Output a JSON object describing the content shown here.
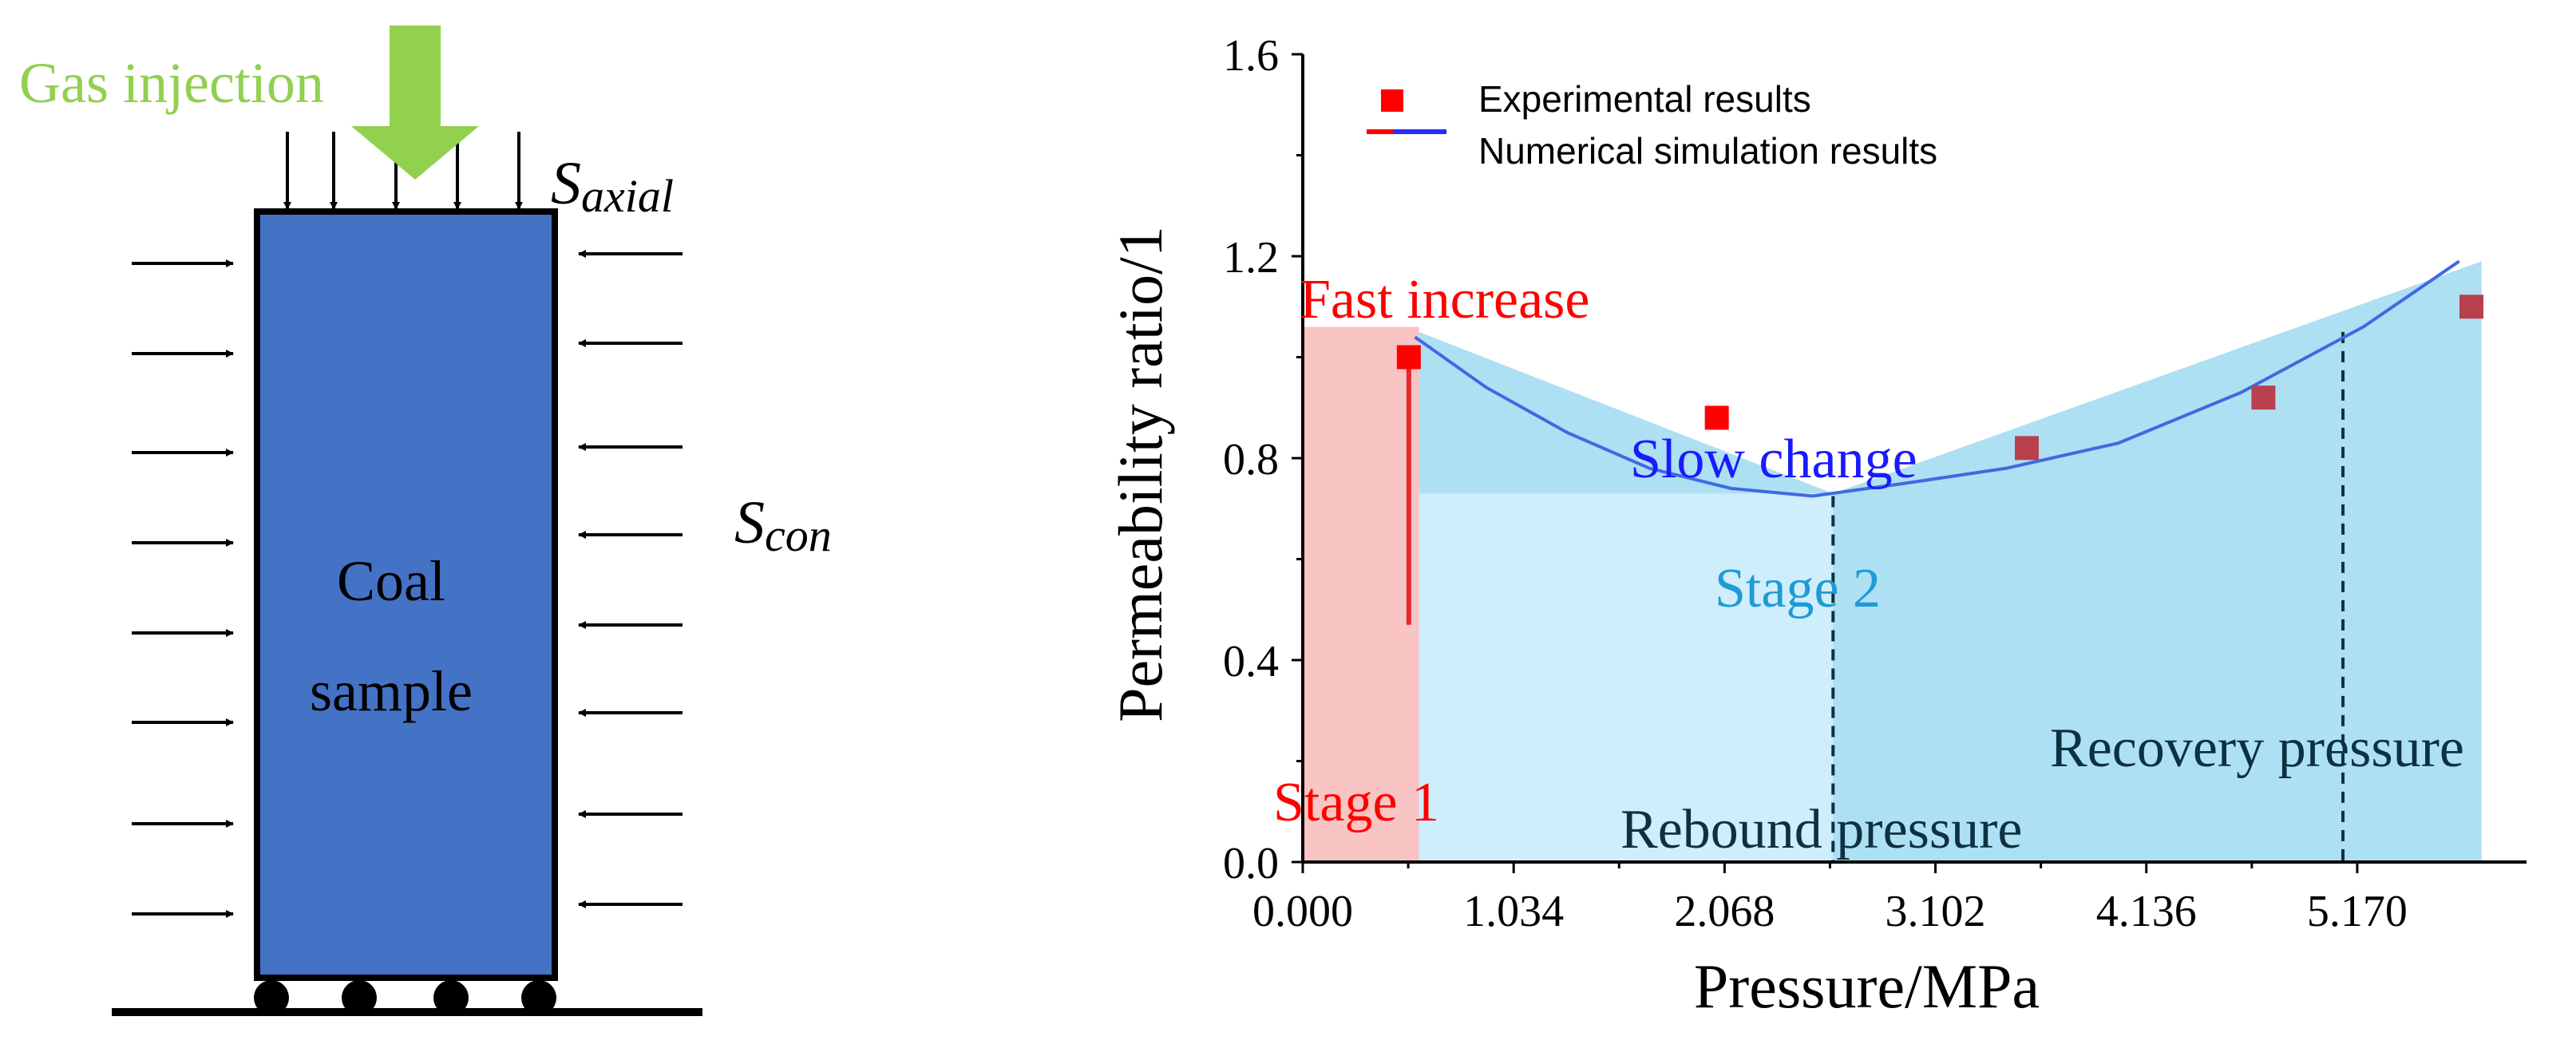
{
  "left_panel": {
    "gas_label": "Gas injection",
    "sample_line1": "Coal",
    "sample_line2": "sample",
    "axial_s": "S",
    "axial_sub": "axial",
    "con_s": "S",
    "con_sub": "con",
    "colors": {
      "sample": "#4472c4",
      "gas_arrow": "#92d050",
      "gas_text": "#92d050"
    }
  },
  "chart_data": {
    "type": "scatter",
    "ylabel": "Permeability ratio/1",
    "xlabel": "Pressure/MPa",
    "xlim": [
      0.0,
      6.0
    ],
    "ylim": [
      0.0,
      1.6
    ],
    "x_ticks": [
      0.0,
      1.034,
      2.068,
      3.102,
      4.136,
      5.17
    ],
    "x_tick_labels": [
      "0.000",
      "1.034",
      "2.068",
      "3.102",
      "4.136",
      "5.170"
    ],
    "y_ticks": [
      0.0,
      0.4,
      0.8,
      1.2,
      1.6
    ],
    "y_tick_labels": [
      "0.0",
      "0.4",
      "0.8",
      "1.2",
      "1.6"
    ],
    "legend": {
      "experimental": "Experimental results",
      "numerical": "Numerical simulation results",
      "position": "top-left"
    },
    "experimental": {
      "x": [
        0.52,
        2.03,
        3.55,
        4.71,
        5.73
      ],
      "y": [
        1.0,
        0.88,
        0.82,
        0.92,
        1.1
      ]
    },
    "numerical": {
      "x": [
        0.55,
        0.9,
        1.3,
        1.7,
        2.1,
        2.5,
        2.95,
        3.45,
        4.0,
        4.6,
        5.2,
        5.67
      ],
      "y": [
        1.04,
        0.94,
        0.85,
        0.78,
        0.74,
        0.725,
        0.75,
        0.78,
        0.83,
        0.93,
        1.06,
        1.19
      ]
    },
    "stage1_vertical_line": {
      "x": 0.52,
      "y_from": 0.47,
      "y_to": 1.0
    },
    "regions": {
      "stage1": {
        "x": [
          0.0,
          0.57
        ],
        "y_top": 1.06
      },
      "stage2_band": {
        "x": [
          0.57,
          5.78
        ],
        "y_top_left": 1.05,
        "y_mid": 0.73,
        "x_mid": 2.6,
        "y_top_right": 1.19
      }
    },
    "dashed_lines": [
      {
        "x": 2.6,
        "y_to": 0.725
      },
      {
        "x": 5.1,
        "y_to": 1.05
      }
    ],
    "annotations": {
      "fast_increase": "Fast increase",
      "slow_change": "Slow change",
      "stage1": "Stage 1",
      "stage2": "Stage 2",
      "rebound": "Rebound pressure",
      "recovery": "Recovery pressure"
    },
    "colors": {
      "experimental": "#ff0000",
      "numerical": "#4169e1",
      "stage1_fill": "#f8c4c4",
      "band_fill": "#aee0f4",
      "fast_increase_text": "#ff0000",
      "slow_change_text": "#1a1aff",
      "stage1_text": "#ff0000",
      "stage2_text": "#1f9ad6",
      "pressure_text": "#0d3140",
      "stage1_line": "#e8262a"
    }
  }
}
